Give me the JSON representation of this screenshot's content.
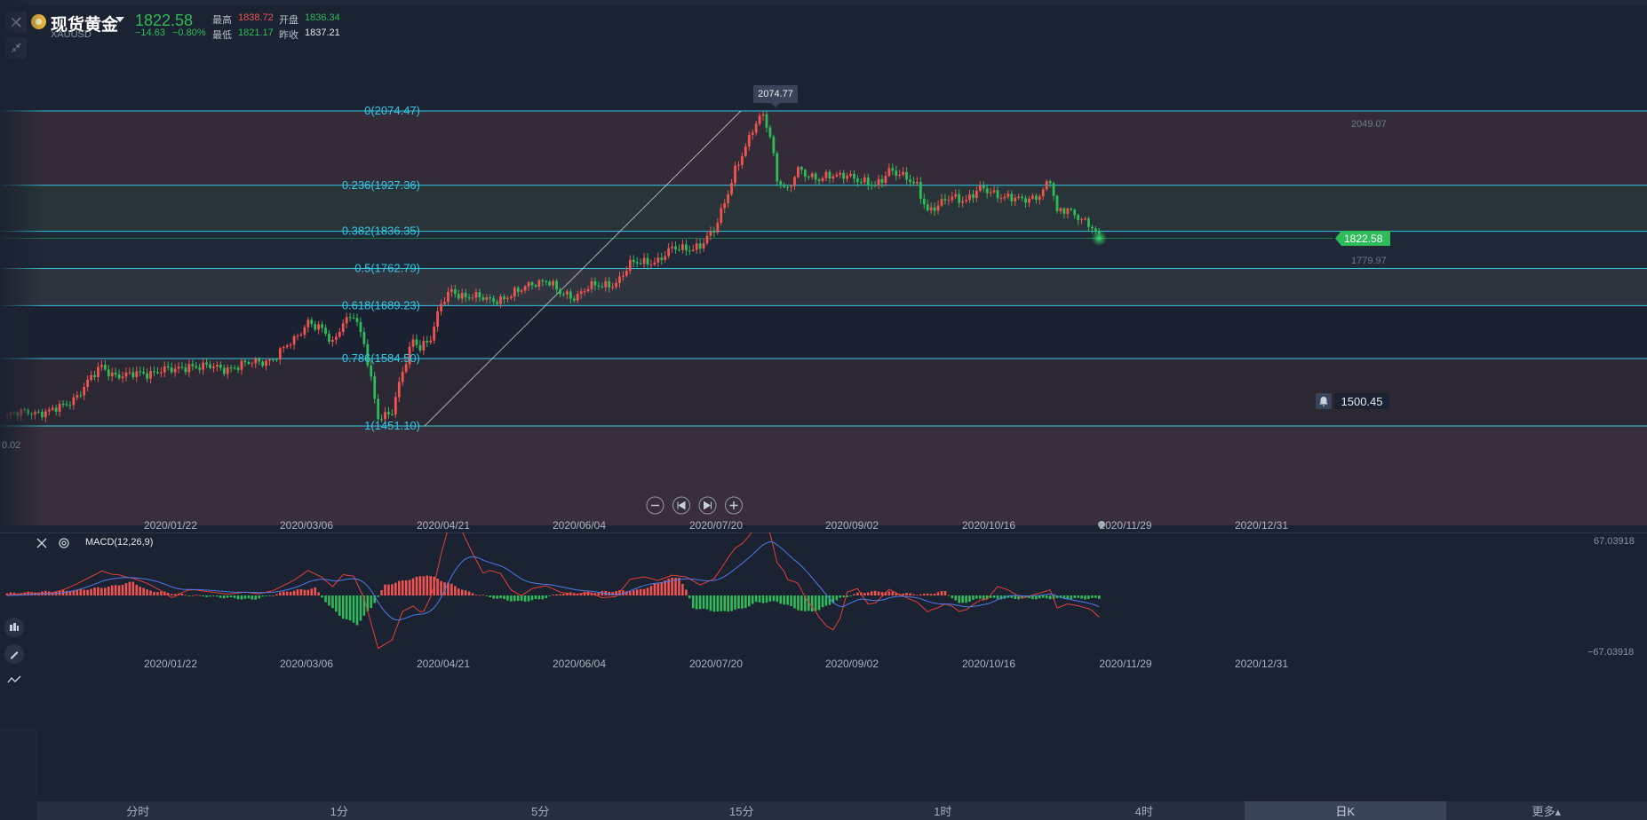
{
  "header": {
    "symbol_name": "现货黄金",
    "symbol_code": "XAUUSD",
    "last_price": "1822.58",
    "change": "−14.63",
    "change_pct": "−0.80%",
    "high_label": "最高",
    "high_value": "1838.72",
    "open_label": "开盘",
    "open_value": "1836.34",
    "low_label": "最低",
    "low_value": "1821.17",
    "prev_close_label": "昨收",
    "prev_close_value": "1837.21"
  },
  "chart_data": [
    {
      "type": "candlestick",
      "title": "现货黄金 XAUUSD",
      "xlabel": "",
      "ylabel": "",
      "x_ticks": [
        "2020/01/22",
        "2020/03/06",
        "2020/04/21",
        "2020/06/04",
        "2020/07/20",
        "2020/09/02",
        "2020/10/16",
        "2020/11/29",
        "2020/12/31"
      ],
      "ylim": [
        1410,
        2130
      ],
      "fibonacci_levels": [
        {
          "label": "0(2074.47)",
          "value": 2074.47
        },
        {
          "label": "0.236(1927.36)",
          "value": 1927.36
        },
        {
          "label": "0.382(1836.35)",
          "value": 1836.35
        },
        {
          "label": "0.5(1762.79)",
          "value": 1762.79
        },
        {
          "label": "0.618(1689.23)",
          "value": 1689.23
        },
        {
          "label": "0.786(1584.50)",
          "value": 1584.5
        },
        {
          "label": "1(1451.10)",
          "value": 1451.1
        }
      ],
      "high_marker": "2074.77",
      "right_axis_labels": [
        "2049.07",
        "1779.97"
      ],
      "left_axis_label": "0.02",
      "current_price_tag": "1822.58",
      "alert_price": "1500.45",
      "close_path": [
        [
          0,
          1470
        ],
        [
          6,
          1480
        ],
        [
          12,
          1478
        ],
        [
          16,
          1490
        ],
        [
          20,
          1512
        ],
        [
          24,
          1545
        ],
        [
          27,
          1568
        ],
        [
          30,
          1555
        ],
        [
          34,
          1550
        ],
        [
          40,
          1556
        ],
        [
          44,
          1562
        ],
        [
          48,
          1560
        ],
        [
          52,
          1572
        ],
        [
          56,
          1568
        ],
        [
          62,
          1565
        ],
        [
          70,
          1575
        ],
        [
          76,
          1585
        ],
        [
          82,
          1620
        ],
        [
          86,
          1660
        ],
        [
          90,
          1640
        ],
        [
          93,
          1612
        ],
        [
          96,
          1660
        ],
        [
          99,
          1672
        ],
        [
          102,
          1610
        ],
        [
          106,
          1470
        ],
        [
          110,
          1480
        ],
        [
          113,
          1555
        ],
        [
          116,
          1622
        ],
        [
          118,
          1610
        ],
        [
          121,
          1625
        ],
        [
          124,
          1690
        ],
        [
          127,
          1720
        ],
        [
          130,
          1710
        ],
        [
          134,
          1705
        ],
        [
          138,
          1700
        ],
        [
          142,
          1705
        ],
        [
          146,
          1715
        ],
        [
          150,
          1735
        ],
        [
          154,
          1740
        ],
        [
          158,
          1712
        ],
        [
          162,
          1708
        ],
        [
          166,
          1726
        ],
        [
          170,
          1727
        ],
        [
          174,
          1736
        ],
        [
          178,
          1770
        ],
        [
          182,
          1775
        ],
        [
          186,
          1780
        ],
        [
          190,
          1800
        ],
        [
          194,
          1803
        ],
        [
          198,
          1808
        ],
        [
          202,
          1835
        ],
        [
          205,
          1895
        ],
        [
          208,
          1960
        ],
        [
          211,
          2000
        ],
        [
          214,
          2050
        ],
        [
          216,
          2069
        ],
        [
          218,
          2030
        ],
        [
          220,
          1940
        ],
        [
          223,
          1912
        ],
        [
          226,
          1960
        ],
        [
          229,
          1950
        ],
        [
          232,
          1938
        ],
        [
          236,
          1945
        ],
        [
          240,
          1952
        ],
        [
          244,
          1932
        ],
        [
          248,
          1926
        ],
        [
          252,
          1960
        ],
        [
          256,
          1942
        ],
        [
          260,
          1928
        ],
        [
          263,
          1878
        ],
        [
          266,
          1885
        ],
        [
          270,
          1905
        ],
        [
          274,
          1900
        ],
        [
          278,
          1918
        ],
        [
          282,
          1912
        ],
        [
          286,
          1905
        ],
        [
          290,
          1895
        ],
        [
          294,
          1905
        ],
        [
          298,
          1938
        ],
        [
          300,
          1870
        ],
        [
          303,
          1880
        ],
        [
          306,
          1868
        ],
        [
          309,
          1850
        ],
        [
          312,
          1822
        ]
      ]
    },
    {
      "type": "bar",
      "title": "MACD(12,26,9)",
      "ylim": [
        -67.03918,
        67.03918
      ],
      "y_ticks": [
        "67.03918",
        "−67.03918"
      ],
      "x_ticks": [
        "2020/01/22",
        "2020/03/06",
        "2020/04/21",
        "2020/06/04",
        "2020/07/20",
        "2020/09/02",
        "2020/10/16",
        "2020/11/29",
        "2020/12/31"
      ],
      "histogram_path": [
        [
          0,
          2
        ],
        [
          20,
          5
        ],
        [
          30,
          9
        ],
        [
          36,
          13
        ],
        [
          40,
          5
        ],
        [
          50,
          1
        ],
        [
          62,
          -2
        ],
        [
          70,
          -4
        ],
        [
          80,
          4
        ],
        [
          88,
          7
        ],
        [
          92,
          -10
        ],
        [
          96,
          -22
        ],
        [
          100,
          -28
        ],
        [
          104,
          -12
        ],
        [
          108,
          10
        ],
        [
          114,
          15
        ],
        [
          120,
          20
        ],
        [
          126,
          12
        ],
        [
          132,
          3
        ],
        [
          140,
          -3
        ],
        [
          146,
          -6
        ],
        [
          152,
          -4
        ],
        [
          158,
          2
        ],
        [
          166,
          3
        ],
        [
          172,
          4
        ],
        [
          180,
          5
        ],
        [
          184,
          9
        ],
        [
          188,
          15
        ],
        [
          192,
          18
        ],
        [
          194,
          5
        ],
        [
          196,
          -12
        ],
        [
          204,
          -16
        ],
        [
          210,
          -13
        ],
        [
          214,
          -7
        ],
        [
          220,
          -6
        ],
        [
          228,
          -16
        ],
        [
          232,
          -14
        ],
        [
          238,
          -3
        ],
        [
          244,
          3
        ],
        [
          250,
          4
        ],
        [
          256,
          2
        ],
        [
          262,
          1
        ],
        [
          268,
          4
        ],
        [
          272,
          -8
        ],
        [
          278,
          -3
        ]
      ]
    }
  ],
  "macd": {
    "title": "MACD(12,26,9)",
    "top_value": "67.03918",
    "bottom_value": "−67.03918"
  },
  "x_axis_labels": [
    "2020/01/22",
    "2020/03/06",
    "2020/04/21",
    "2020/06/04",
    "2020/07/20",
    "2020/09/02",
    "2020/10/16",
    "2020/11/29",
    "2020/12/31"
  ],
  "tabs": [
    "分时",
    "1分",
    "5分",
    "15分",
    "1时",
    "4时",
    "日K",
    "更多▴"
  ],
  "active_tab": "日K",
  "colors": {
    "background": "#1b2231",
    "up": "#f05350",
    "down": "#2ebc5a",
    "fib": "#34c8e4",
    "macd_line": "#e0413c",
    "signal_line": "#4f7be8"
  }
}
